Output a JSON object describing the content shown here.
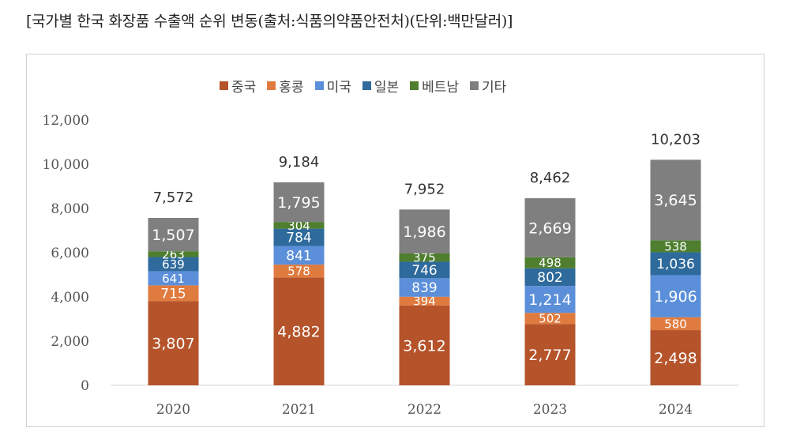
{
  "caption": "[국가별 한국 화장품 수출액 순위 변동(출처:식품의약품안전처)(단위:백만달러)]",
  "chart_data": {
    "type": "bar",
    "stacked": true,
    "title": "",
    "xlabel": "",
    "ylabel": "",
    "ylim": [
      0,
      12000
    ],
    "yticks": [
      0,
      2000,
      4000,
      6000,
      8000,
      10000,
      12000
    ],
    "ytick_labels": [
      "0",
      "2,000",
      "4,000",
      "6,000",
      "8,000",
      "10,000",
      "12,000"
    ],
    "categories": [
      "2020",
      "2021",
      "2022",
      "2023",
      "2024"
    ],
    "series": [
      {
        "name": "중국",
        "color": "#B5532A",
        "values": [
          3807,
          4882,
          3612,
          2777,
          2498
        ],
        "labels": [
          "3,807",
          "4,882",
          "3,612",
          "2,777",
          "2,498"
        ]
      },
      {
        "name": "홍콩",
        "color": "#E07B3F",
        "values": [
          715,
          578,
          394,
          502,
          580
        ],
        "labels": [
          "715",
          "578",
          "394",
          "502",
          "580"
        ]
      },
      {
        "name": "미국",
        "color": "#5B8FD9",
        "values": [
          641,
          841,
          839,
          1214,
          1906
        ],
        "labels": [
          "641",
          "841",
          "839",
          "1,214",
          "1,906"
        ]
      },
      {
        "name": "일본",
        "color": "#2E6A9B",
        "values": [
          639,
          784,
          746,
          802,
          1036
        ],
        "labels": [
          "639",
          "784",
          "746",
          "802",
          "1,036"
        ]
      },
      {
        "name": "베트남",
        "color": "#4E7E2E",
        "values": [
          263,
          304,
          375,
          498,
          538
        ],
        "labels": [
          "263",
          "304",
          "375",
          "498",
          "538"
        ]
      },
      {
        "name": "기타",
        "color": "#7F7F7F",
        "values": [
          1507,
          1795,
          1986,
          2669,
          3645
        ],
        "labels": [
          "1,507",
          "1,795",
          "1,986",
          "2,669",
          "3,645"
        ]
      }
    ],
    "totals": [
      7572,
      9184,
      7952,
      8462,
      10203
    ],
    "total_labels": [
      "7,572",
      "9,184",
      "7,952",
      "8,462",
      "10,203"
    ],
    "legend_position": "top-center",
    "grid": false
  }
}
